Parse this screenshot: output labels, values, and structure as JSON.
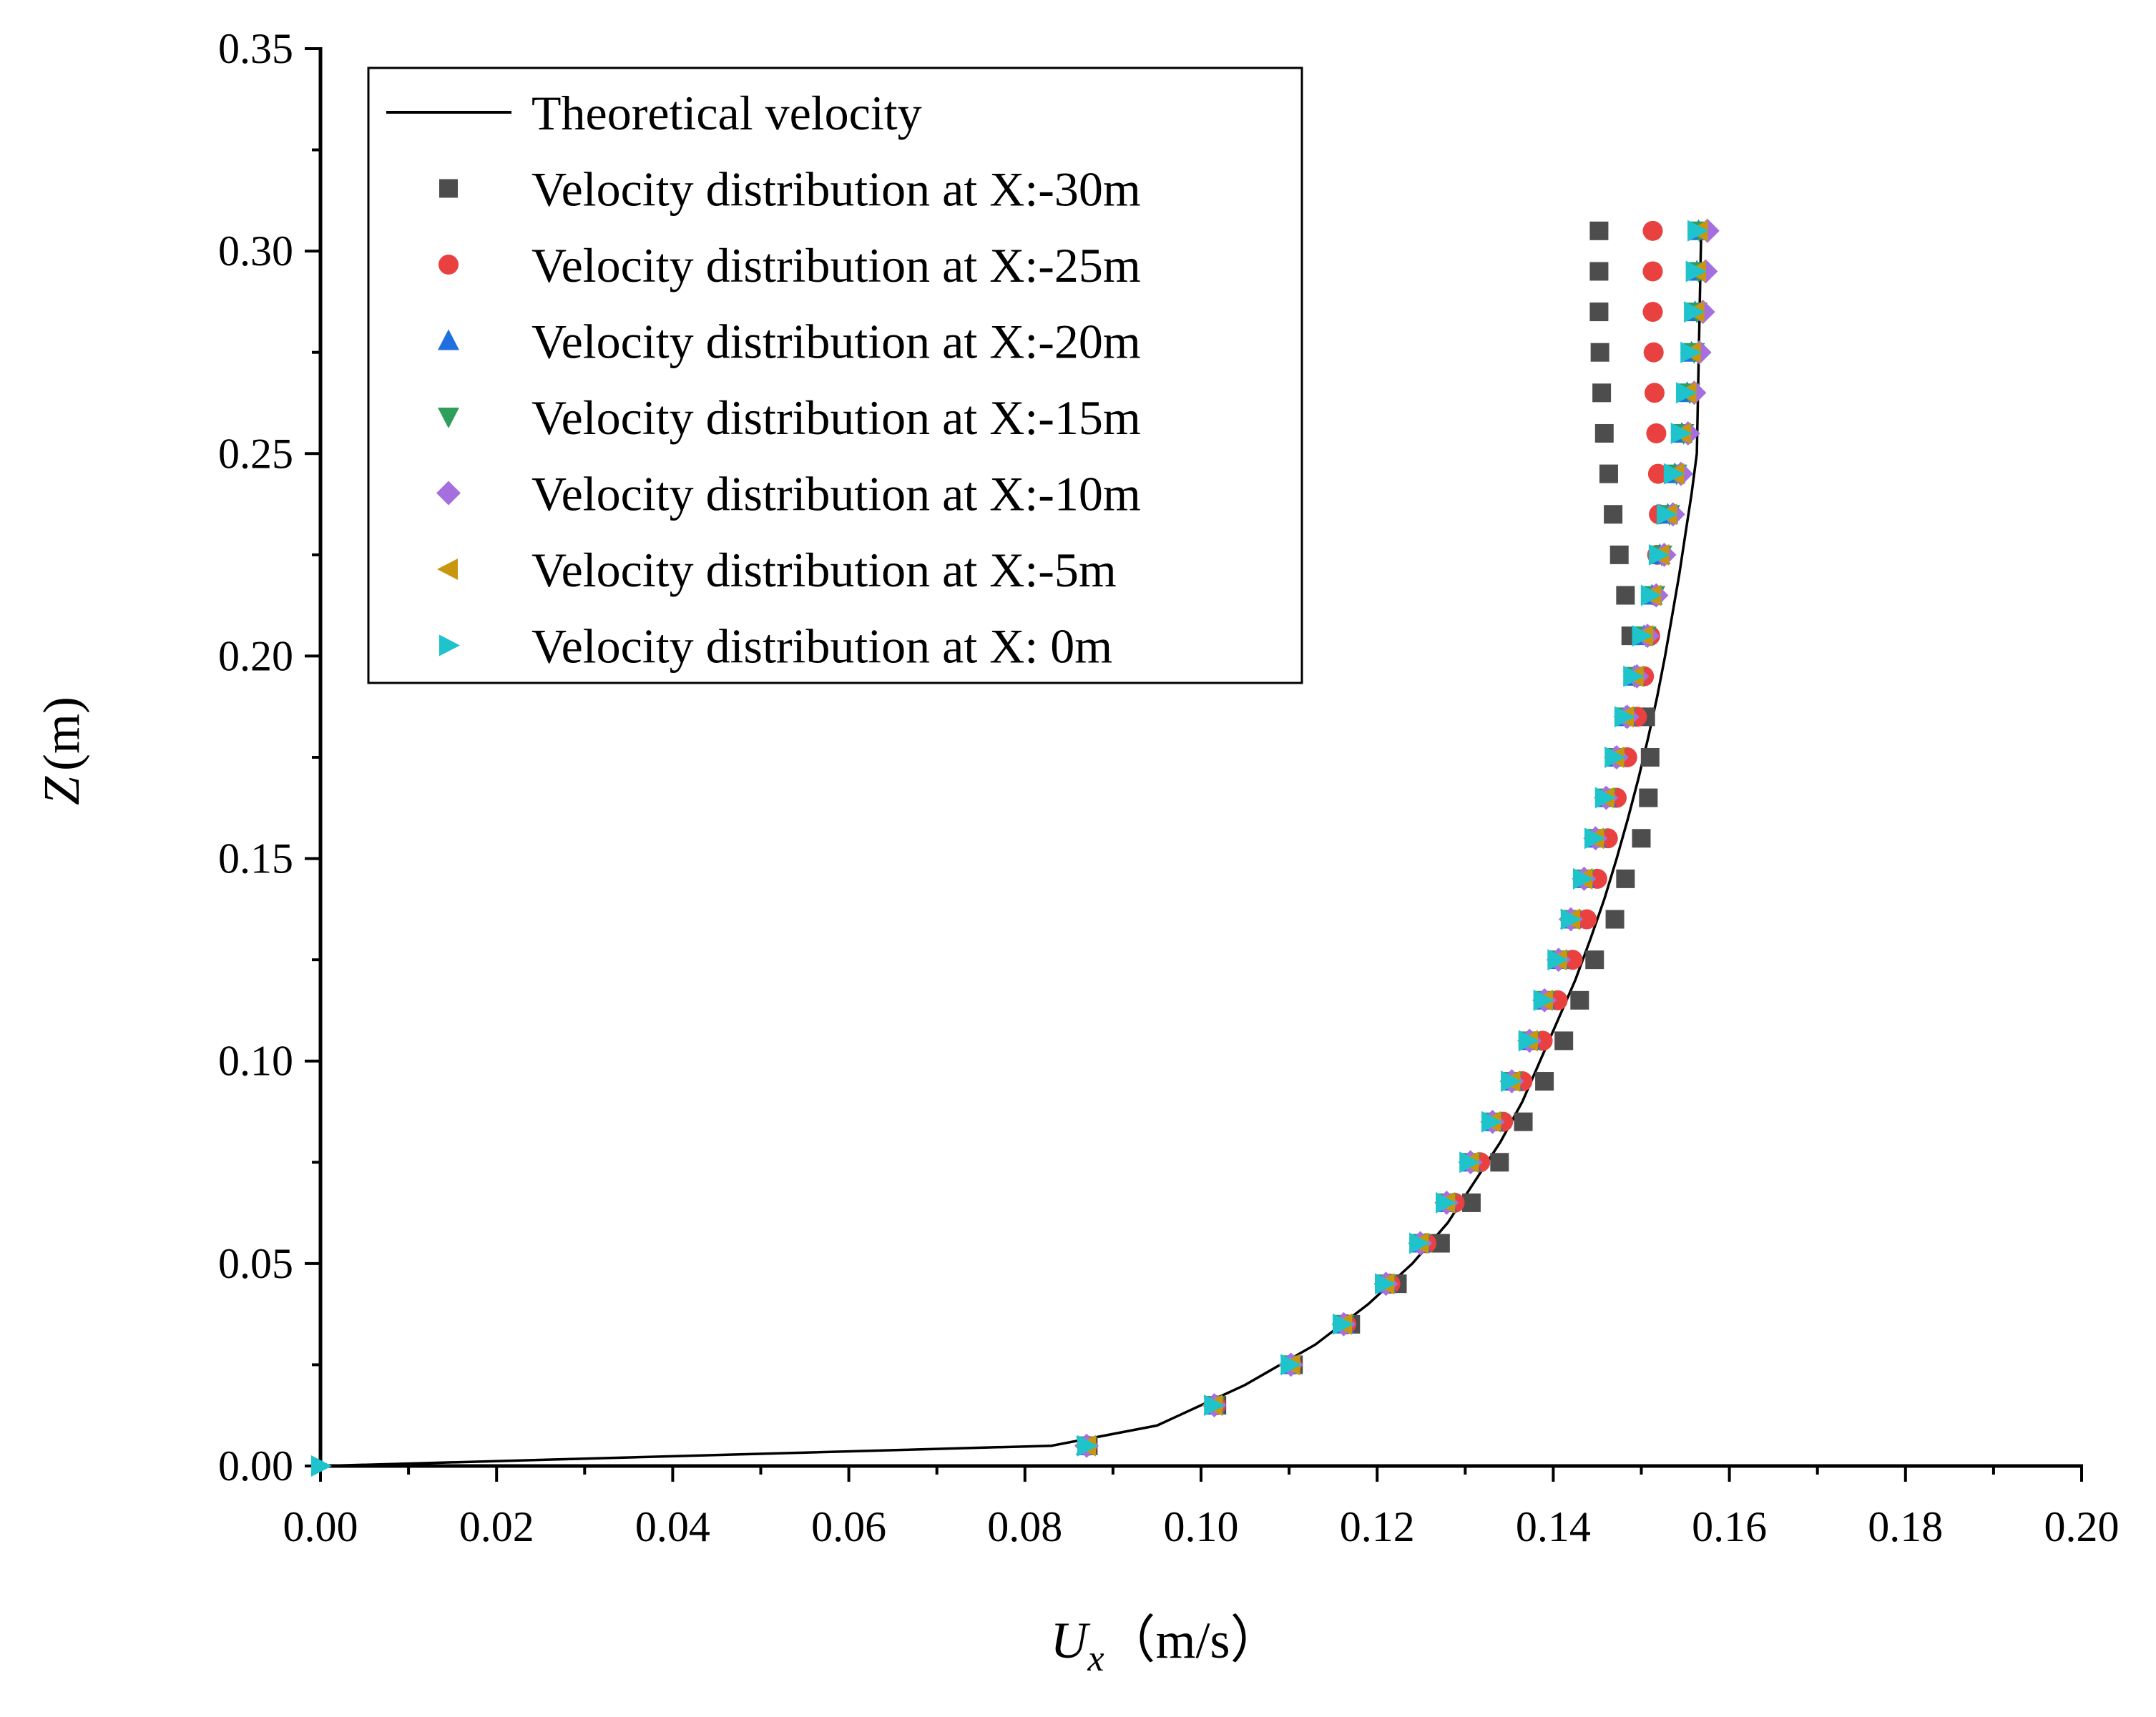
{
  "chart_data": {
    "type": "scatter",
    "xlabel": {
      "var": "U",
      "sub": "x",
      "unit": "（m/s）"
    },
    "ylabel": {
      "var": "Z",
      "unit": "(m)"
    },
    "xlim": [
      0,
      0.2
    ],
    "ylim": [
      0,
      0.35
    ],
    "xticks": [
      0.0,
      0.02,
      0.04,
      0.06,
      0.08,
      0.1,
      0.12,
      0.14,
      0.16,
      0.18,
      0.2
    ],
    "xtick_labels": [
      "0.00",
      "0.02",
      "0.04",
      "0.06",
      "0.08",
      "0.10",
      "0.12",
      "0.14",
      "0.16",
      "0.18",
      "0.20"
    ],
    "yticks": [
      0.0,
      0.05,
      0.1,
      0.15,
      0.2,
      0.25,
      0.3,
      0.35
    ],
    "ytick_labels": [
      "0.00",
      "0.05",
      "0.10",
      "0.15",
      "0.20",
      "0.25",
      "0.30",
      "0.35"
    ],
    "legend_position": "top-left",
    "theoretical": {
      "name": "Theoretical velocity",
      "color": "#000000",
      "x": [
        0.0,
        0.083,
        0.095,
        0.105,
        0.113,
        0.119,
        0.124,
        0.128,
        0.131,
        0.134,
        0.1365,
        0.1385,
        0.1405,
        0.1425,
        0.1442,
        0.1458,
        0.1472,
        0.1485,
        0.1497,
        0.1508,
        0.1518,
        0.1527,
        0.1535,
        0.1543,
        0.155,
        0.1557,
        0.1563,
        0.1568
      ],
      "y": [
        0.0,
        0.005,
        0.01,
        0.02,
        0.03,
        0.04,
        0.05,
        0.06,
        0.07,
        0.08,
        0.09,
        0.1,
        0.11,
        0.12,
        0.13,
        0.14,
        0.15,
        0.16,
        0.17,
        0.18,
        0.19,
        0.2,
        0.21,
        0.22,
        0.23,
        0.24,
        0.25,
        0.305
      ]
    },
    "z": [
      0.005,
      0.015,
      0.025,
      0.035,
      0.045,
      0.055,
      0.065,
      0.075,
      0.085,
      0.095,
      0.105,
      0.115,
      0.125,
      0.135,
      0.145,
      0.155,
      0.165,
      0.175,
      0.185,
      0.195,
      0.205,
      0.215,
      0.225,
      0.235,
      0.245,
      0.255,
      0.265,
      0.275,
      0.285,
      0.295,
      0.305
    ],
    "series": [
      {
        "name": "Velocity distribution at X:-30m",
        "marker": "square",
        "color": "#4d4d4d",
        "values": [
          0.0872,
          0.1018,
          0.1105,
          0.117,
          0.1223,
          0.1272,
          0.1307,
          0.1339,
          0.1366,
          0.139,
          0.1412,
          0.143,
          0.1447,
          0.147,
          0.1482,
          0.15,
          0.1508,
          0.151,
          0.1505,
          0.1495,
          0.1488,
          0.1482,
          0.1475,
          0.1468,
          0.1463,
          0.1458,
          0.1455,
          0.1453,
          0.1452,
          0.1452,
          0.1452
        ]
      },
      {
        "name": "Velocity distribution at X:-25m",
        "marker": "circle",
        "color": "#e8413f",
        "values": [
          0.0871,
          0.1017,
          0.1103,
          0.1165,
          0.1215,
          0.1256,
          0.1288,
          0.1317,
          0.1343,
          0.1365,
          0.1388,
          0.1405,
          0.1422,
          0.1438,
          0.145,
          0.1462,
          0.1472,
          0.1484,
          0.1495,
          0.1503,
          0.151,
          0.1515,
          0.1518,
          0.152,
          0.1519,
          0.1517,
          0.1515,
          0.1514,
          0.1513,
          0.1513,
          0.1513
        ]
      },
      {
        "name": "Velocity distribution at X:-20m",
        "marker": "triangle-up",
        "color": "#1f6fe0",
        "values": [
          0.087,
          0.1015,
          0.1102,
          0.1162,
          0.121,
          0.1249,
          0.1279,
          0.1306,
          0.1331,
          0.1353,
          0.1373,
          0.139,
          0.1406,
          0.142,
          0.1435,
          0.1448,
          0.146,
          0.147,
          0.1482,
          0.1492,
          0.1503,
          0.1512,
          0.1521,
          0.153,
          0.1538,
          0.1546,
          0.1552,
          0.1557,
          0.1561,
          0.1563,
          0.1565
        ]
      },
      {
        "name": "Velocity distribution at X:-15m",
        "marker": "triangle-down",
        "color": "#2e9e5b",
        "values": [
          0.087,
          0.1015,
          0.1102,
          0.1162,
          0.121,
          0.1249,
          0.1279,
          0.1306,
          0.1331,
          0.1353,
          0.1373,
          0.139,
          0.1406,
          0.142,
          0.1435,
          0.1448,
          0.146,
          0.147,
          0.1482,
          0.1492,
          0.1505,
          0.1515,
          0.1523,
          0.1532,
          0.154,
          0.1548,
          0.1555,
          0.156,
          0.1563,
          0.1565,
          0.1566
        ]
      },
      {
        "name": "Velocity distribution at X:-10m",
        "marker": "diamond",
        "color": "#a56fde",
        "values": [
          0.087,
          0.1015,
          0.1102,
          0.1162,
          0.121,
          0.1249,
          0.1279,
          0.1306,
          0.1331,
          0.1353,
          0.1373,
          0.139,
          0.1406,
          0.142,
          0.1435,
          0.1448,
          0.146,
          0.1472,
          0.1484,
          0.1495,
          0.1507,
          0.1517,
          0.1526,
          0.1536,
          0.1545,
          0.1553,
          0.156,
          0.1566,
          0.157,
          0.1573,
          0.1575
        ]
      },
      {
        "name": "Velocity distribution at X:-5m",
        "marker": "triangle-left",
        "color": "#c9960f",
        "values": [
          0.087,
          0.1014,
          0.1102,
          0.1161,
          0.1209,
          0.1248,
          0.1278,
          0.1305,
          0.133,
          0.1352,
          0.1372,
          0.1389,
          0.1405,
          0.142,
          0.1434,
          0.1447,
          0.1459,
          0.147,
          0.1481,
          0.1492,
          0.1503,
          0.1512,
          0.1521,
          0.153,
          0.1538,
          0.1546,
          0.1552,
          0.1557,
          0.1561,
          0.1563,
          0.1565
        ]
      },
      {
        "name": "Velocity distribution at X: 0m",
        "marker": "triangle-right",
        "color": "#1fc3cc",
        "values": [
          0.087,
          0.1014,
          0.1101,
          0.116,
          0.1208,
          0.1247,
          0.1277,
          0.1304,
          0.1329,
          0.1351,
          0.1371,
          0.1388,
          0.1404,
          0.1419,
          0.1433,
          0.1446,
          0.1458,
          0.1469,
          0.148,
          0.149,
          0.15,
          0.151,
          0.1519,
          0.1528,
          0.1536,
          0.1544,
          0.155,
          0.1555,
          0.1559,
          0.1561,
          0.1563
        ]
      }
    ]
  }
}
